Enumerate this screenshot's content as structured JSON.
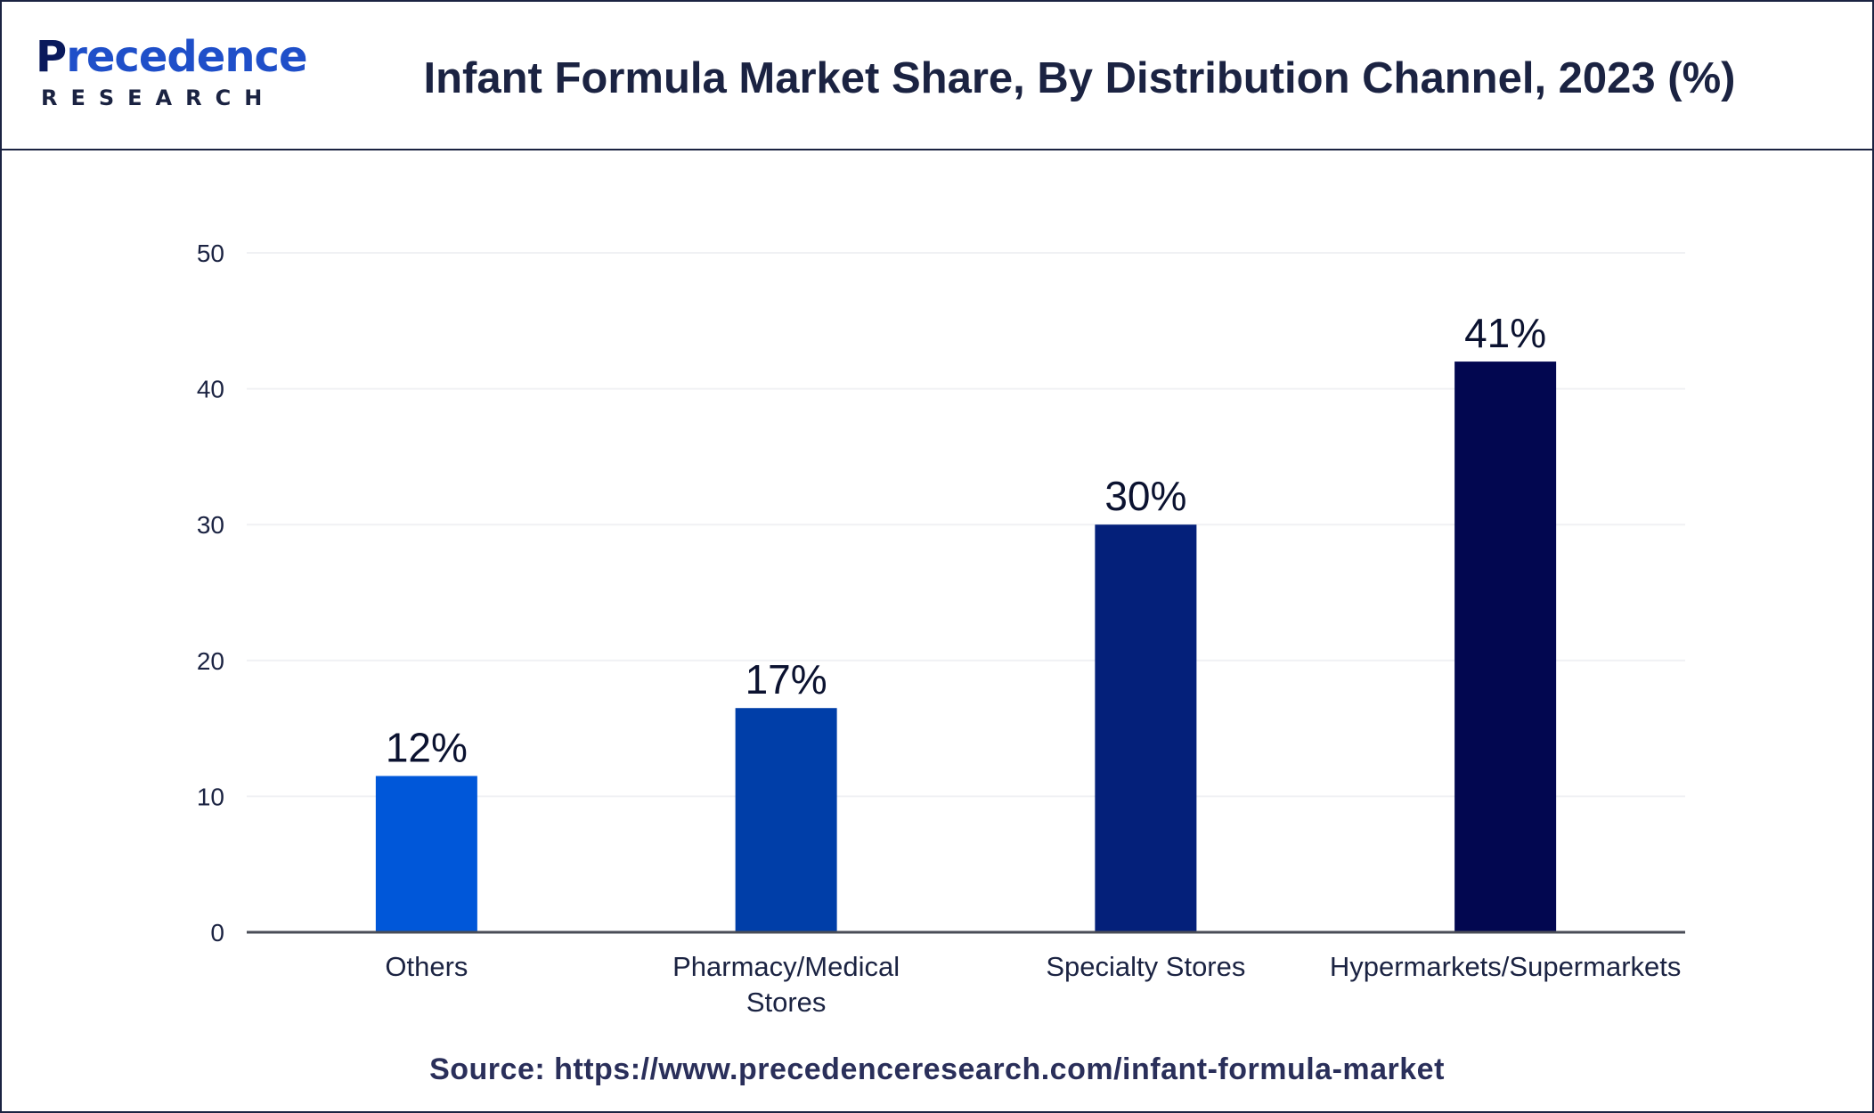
{
  "header": {
    "logo_main": "Precedence",
    "logo_sub": "RESEARCH",
    "title": "Infant Formula Market Share, By Distribution Channel, 2023 (%)"
  },
  "chart_data": {
    "type": "bar",
    "categories": [
      "Others",
      "Pharmacy/Medical Stores",
      "Specialty Stores",
      "Hypermarkets/Supermarkets"
    ],
    "category_lines": [
      [
        "Others"
      ],
      [
        "Pharmacy/Medical",
        "Stores"
      ],
      [
        "Specialty Stores"
      ],
      [
        "Hypermarkets/Supermarkets"
      ]
    ],
    "values": [
      12,
      17,
      30,
      41
    ],
    "bar_heights": [
      11.5,
      16.5,
      30,
      42
    ],
    "data_labels": [
      "12%",
      "17%",
      "30%",
      "41%"
    ],
    "bar_colors": [
      "#0057d9",
      "#003ea8",
      "#04207a",
      "#020750"
    ],
    "yticks": [
      0,
      10,
      20,
      30,
      40,
      50
    ],
    "ylim": [
      0,
      50
    ],
    "grid": true
  },
  "footer": {
    "source": "Source: https://www.precedenceresearch.com/infant-formula-market"
  }
}
